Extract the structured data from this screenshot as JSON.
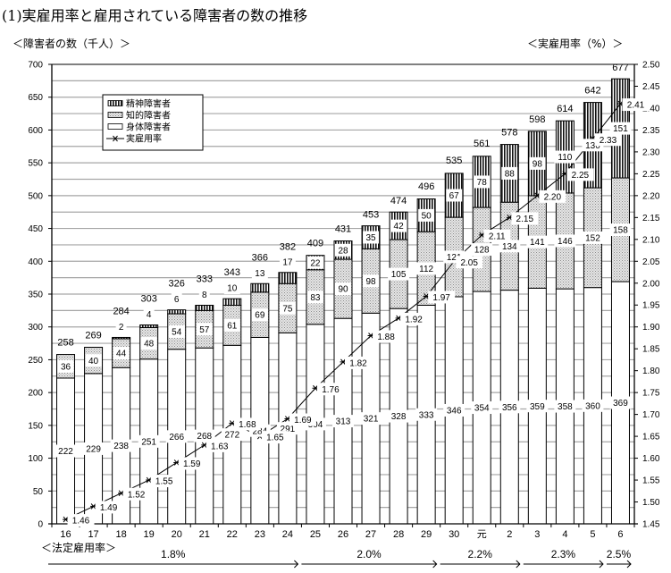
{
  "page": {
    "title": "(1)実雇用率と雇用されている障害者の数の推移",
    "left_axis_label": "＜障害者の数（千人）＞",
    "right_axis_label": "＜実雇用率（%）＞",
    "legal_rate_label": "＜法定雇用率＞"
  },
  "chart_data": {
    "type": "bar",
    "subtype": "stacked_bar_with_line",
    "title": "(1)実雇用率と雇用されている障害者の数の推移",
    "xlabel": "",
    "ylabel": "障害者の数（千人）",
    "y2label": "実雇用率（%）",
    "ylim": [
      0,
      700
    ],
    "yticks": [
      0,
      50,
      100,
      150,
      200,
      250,
      300,
      350,
      400,
      450,
      500,
      550,
      600,
      650,
      700
    ],
    "y2lim": [
      1.45,
      2.5
    ],
    "y2ticks": [
      "1.45",
      "1.50",
      "1.55",
      "1.60",
      "1.65",
      "1.70",
      "1.75",
      "1.80",
      "1.85",
      "1.90",
      "1.95",
      "2.00",
      "2.05",
      "2.10",
      "2.15",
      "2.20",
      "2.25",
      "2.30",
      "2.35",
      "2.40",
      "2.45",
      "2.50"
    ],
    "grid": true,
    "legend_position": "upper-left-inside",
    "categories": [
      "16",
      "17",
      "18",
      "19",
      "20",
      "21",
      "22",
      "23",
      "24",
      "25",
      "26",
      "27",
      "28",
      "29",
      "30",
      "元",
      "2",
      "3",
      "4",
      "5",
      "6"
    ],
    "series": [
      {
        "name": "身体障害者",
        "type": "bar",
        "pattern": "white",
        "values": [
          222,
          229,
          238,
          251,
          266,
          268,
          272,
          284,
          291,
          304,
          313,
          321,
          328,
          333,
          346,
          354,
          356,
          359,
          358,
          360,
          369
        ]
      },
      {
        "name": "知的障害者",
        "type": "bar",
        "pattern": "dotted",
        "values": [
          36,
          40,
          44,
          48,
          54,
          57,
          61,
          69,
          75,
          83,
          90,
          98,
          105,
          112,
          121,
          128,
          134,
          141,
          146,
          152,
          158
        ]
      },
      {
        "name": "精神障害者",
        "type": "bar",
        "pattern": "vertical-stripes",
        "values": [
          0,
          0,
          2,
          4,
          6,
          8,
          10,
          13,
          17,
          22,
          28,
          35,
          42,
          50,
          67,
          78,
          88,
          98,
          110,
          130,
          151
        ]
      },
      {
        "name": "実雇用率",
        "type": "line",
        "axis": "right",
        "marker": "asterisk",
        "values": [
          1.46,
          1.49,
          1.52,
          1.55,
          1.59,
          1.63,
          1.68,
          1.65,
          1.69,
          1.76,
          1.82,
          1.88,
          1.92,
          1.97,
          2.05,
          2.11,
          2.15,
          2.2,
          2.25,
          2.33,
          2.41
        ]
      }
    ],
    "totals": [
      258,
      269,
      284,
      303,
      326,
      333,
      343,
      366,
      382,
      409,
      431,
      453,
      474,
      496,
      535,
      561,
      578,
      598,
      614,
      642,
      677
    ],
    "legend": [
      "精神障害者",
      "知的障害者",
      "身体障害者",
      "実雇用率"
    ],
    "annotations": {
      "legal_employment_rate": [
        {
          "label": "1.8%",
          "from": "16",
          "to": "24"
        },
        {
          "label": "2.0%",
          "from": "25",
          "to": "29"
        },
        {
          "label": "2.2%",
          "from": "30",
          "to": "2"
        },
        {
          "label": "2.3%",
          "from": "3",
          "to": "5"
        },
        {
          "label": "2.5%",
          "from": "6",
          "to": "6"
        }
      ]
    }
  }
}
